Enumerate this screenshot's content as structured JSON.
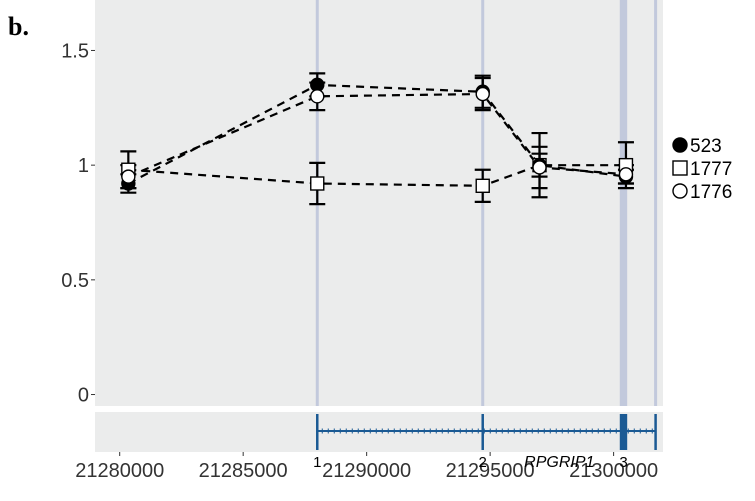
{
  "panel_label": "b.",
  "colors": {
    "panel_bg": "#ebecec",
    "exon_band": "#c2c9dc",
    "gene_track": "#1b5a94",
    "series_line": "#000000"
  },
  "chart_data": {
    "type": "line",
    "title": "",
    "xlabel": "",
    "ylabel": "",
    "xlim": [
      21279000,
      21302000
    ],
    "ylim": [
      -0.05,
      1.72
    ],
    "yticks": [
      0,
      0.5,
      1,
      1.5
    ],
    "ytick_labels": [
      "0",
      "0.5",
      "1",
      "1.5"
    ],
    "xticks": [
      21280000,
      21285000,
      21290000,
      21295000,
      21300000
    ],
    "xtick_labels": [
      "21280000",
      "21285000",
      "21290000",
      "21295000",
      "21300000"
    ],
    "grid": false,
    "legend_position": "right",
    "series": [
      {
        "name": "523",
        "marker": "filled-circle",
        "x": [
          21280350,
          21288000,
          21294700,
          21297000,
          21300500
        ],
        "y": [
          0.92,
          1.35,
          1.32,
          1.0,
          0.95
        ],
        "err": [
          0.04,
          0.05,
          0.07,
          0.05,
          0.03
        ]
      },
      {
        "name": "1777",
        "marker": "open-square",
        "x": [
          21280350,
          21288000,
          21294700,
          21297000,
          21300500
        ],
        "y": [
          0.98,
          0.92,
          0.91,
          1.0,
          1.0
        ],
        "err": [
          0.08,
          0.09,
          0.07,
          0.14,
          0.1
        ]
      },
      {
        "name": "1776",
        "marker": "open-circle",
        "x": [
          21280350,
          21288000,
          21294700,
          21297000,
          21300500
        ],
        "y": [
          0.95,
          1.3,
          1.31,
          0.99,
          0.96
        ],
        "err": [
          0.05,
          0.06,
          0.07,
          0.09,
          0.04
        ]
      }
    ],
    "exons": [
      {
        "label": "1",
        "start": 21288000,
        "end": 21288000
      },
      {
        "label": "2",
        "start": 21294700,
        "end": 21294700
      },
      {
        "label": "3",
        "start": 21300250,
        "end": 21300550
      },
      {
        "label": "",
        "start": 21301700,
        "end": 21301700
      }
    ],
    "gene": {
      "name": "RPGRIP1",
      "start": 21288000,
      "end": 21301700
    }
  }
}
